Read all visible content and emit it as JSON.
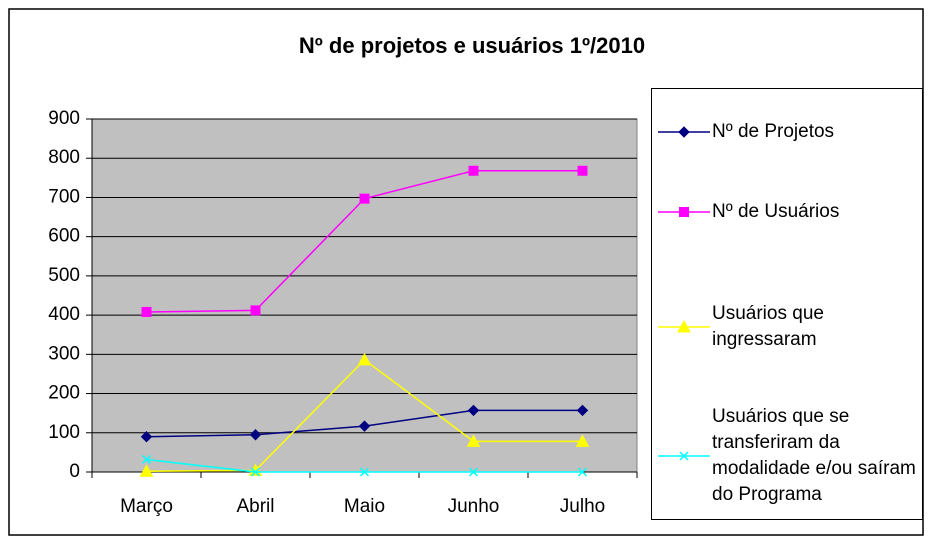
{
  "chart_data": {
    "type": "line",
    "title": "Nº de projetos e usuários 1º/2010",
    "categories": [
      "Março",
      "Abril",
      "Maio",
      "Junho",
      "Julho"
    ],
    "series": [
      {
        "name": "Nº de Projetos",
        "color": "#000080",
        "marker": "diamond",
        "values": [
          90,
          95,
          117,
          157,
          157
        ]
      },
      {
        "name": "Nº de Usuários",
        "color": "#ff00ff",
        "marker": "square",
        "values": [
          408,
          412,
          697,
          768,
          768
        ]
      },
      {
        "name": "Usuários que ingressaram",
        "color": "#ffff00",
        "marker": "triangle",
        "values": [
          2,
          4,
          286,
          78,
          78
        ]
      },
      {
        "name": "Usuários que se transferiram da modalidade e/ou saíram do Programa",
        "color": "#00ffff",
        "marker": "x",
        "values": [
          32,
          0,
          0,
          0,
          0
        ]
      }
    ],
    "ylim": [
      0,
      900
    ],
    "yticks": [
      0,
      100,
      200,
      300,
      400,
      500,
      600,
      700,
      800,
      900
    ],
    "grid": true,
    "legend": "right"
  }
}
